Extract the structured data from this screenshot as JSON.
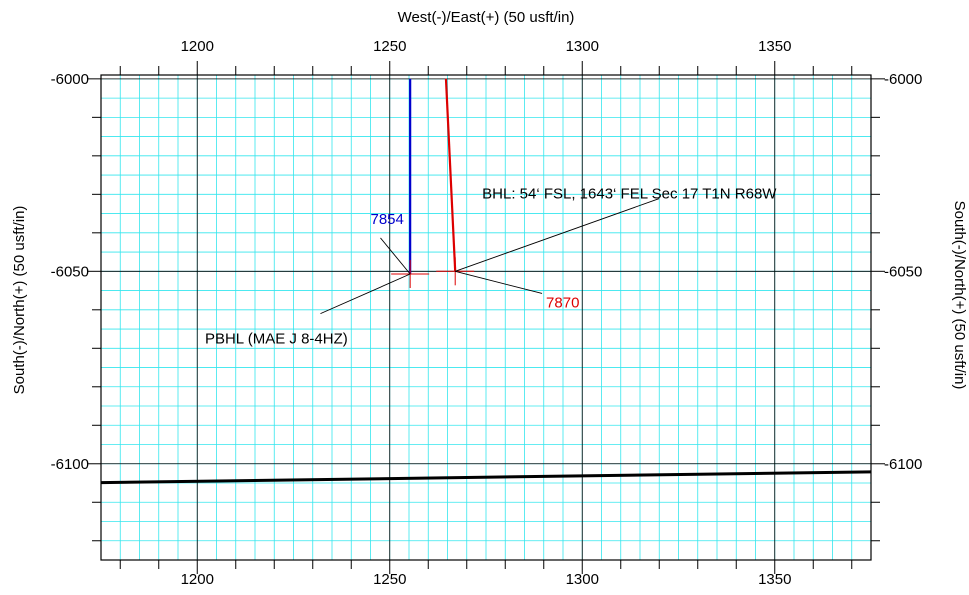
{
  "chart_data": {
    "type": "scatter",
    "xlabel": "West(-)/East(+) (50 usft/in)",
    "ylabel_left": "South(-)/North(+) (50 usft/in)",
    "ylabel_right": "South(-)/North(+) (50 usft/in)",
    "xlim": [
      1175,
      1375
    ],
    "ylim": [
      -6125,
      -5999
    ],
    "x_ticks": [
      1200,
      1250,
      1300,
      1350
    ],
    "x_tick_labels": [
      "1200",
      "1250",
      "1300",
      "1350"
    ],
    "y_ticks": [
      -6000,
      -6050,
      -6100
    ],
    "y_tick_labels": [
      "-6000",
      "-6050",
      "-6100"
    ],
    "grid": true,
    "series": [
      {
        "color": "#0000cc",
        "x": [
          1255.3,
          1255.3
        ],
        "y": [
          -6000,
          -6050.7
        ]
      },
      {
        "color": "#dd0000",
        "x": [
          1264.6,
          1267.0
        ],
        "y": [
          -6000,
          -6050.0
        ]
      },
      {
        "color": "#000000",
        "x": [
          1175,
          1375
        ],
        "y": [
          -6104.9,
          -6102.1
        ]
      }
    ],
    "targets": [
      {
        "x": 1255.3,
        "y": -6050.7,
        "color": "#dd0000"
      },
      {
        "x": 1267.0,
        "y": -6050.0,
        "color": "#dd0000"
      }
    ],
    "annotations": [
      {
        "text": "7854",
        "color": "#0000cc",
        "x": 1245,
        "y": -6037.7,
        "to_x": 1255.3,
        "to_y": -6050.7
      },
      {
        "text": "7870",
        "color": "#dd0000",
        "x": 1290.6,
        "y": -6059.4,
        "to_x": 1267.0,
        "to_y": -6050.0
      },
      {
        "text": "BHL: 54‘ FSL, 1643‘ FEL Sec 17 T1N R68W",
        "color": "#000000",
        "x": 1274,
        "y": -6031.1,
        "to_x": 1267.0,
        "to_y": -6050.0,
        "from_x": 1320,
        "from_y": -6031.1
      },
      {
        "text": "PBHL (MAE J 8-4HZ)",
        "color": "#000000",
        "x": 1202,
        "y": -6068.7,
        "to_x": 1255.3,
        "to_y": -6050.7,
        "from_x": 1232,
        "from_y": -6061.0
      }
    ]
  }
}
